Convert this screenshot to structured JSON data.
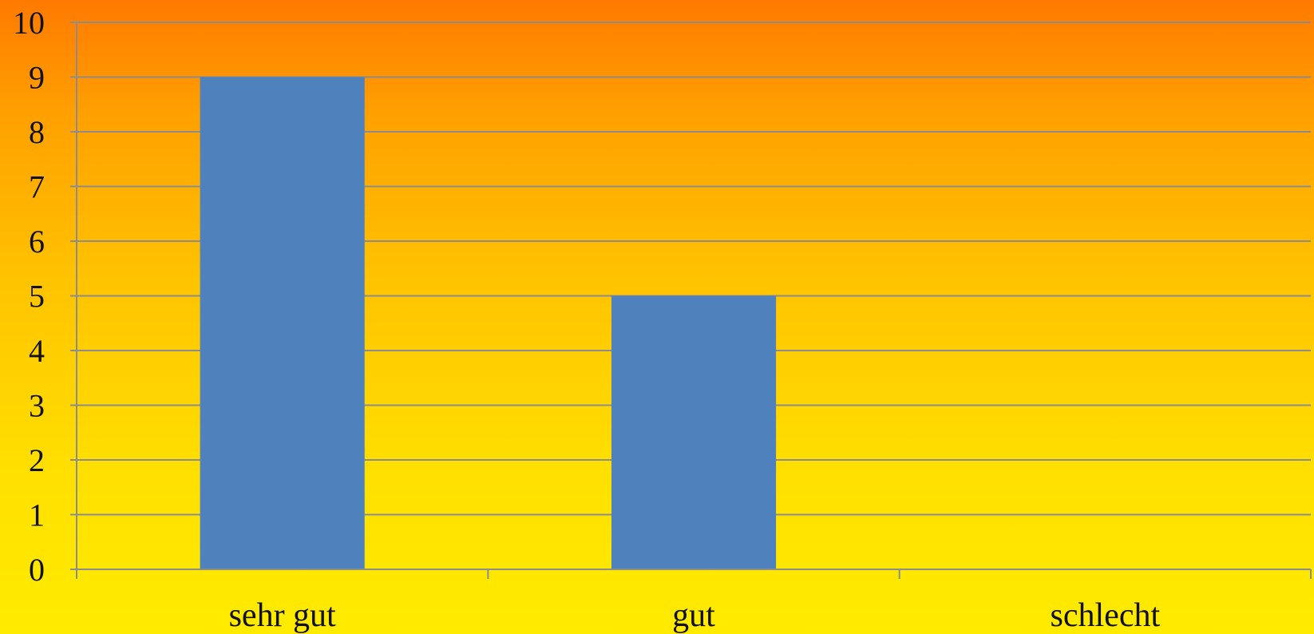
{
  "chart_data": {
    "type": "bar",
    "categories": [
      "sehr gut",
      "gut",
      "schlecht"
    ],
    "values": [
      9,
      5,
      0
    ],
    "ylim": [
      0,
      10
    ],
    "yticks": [
      "0",
      "1",
      "2",
      "3",
      "4",
      "5",
      "6",
      "7",
      "8",
      "9",
      "10"
    ],
    "grid": true,
    "legend": "none",
    "colors": {
      "bar": "#4f81bd",
      "grid": "#8c8c8c",
      "axis": "#8c8c8c"
    }
  }
}
